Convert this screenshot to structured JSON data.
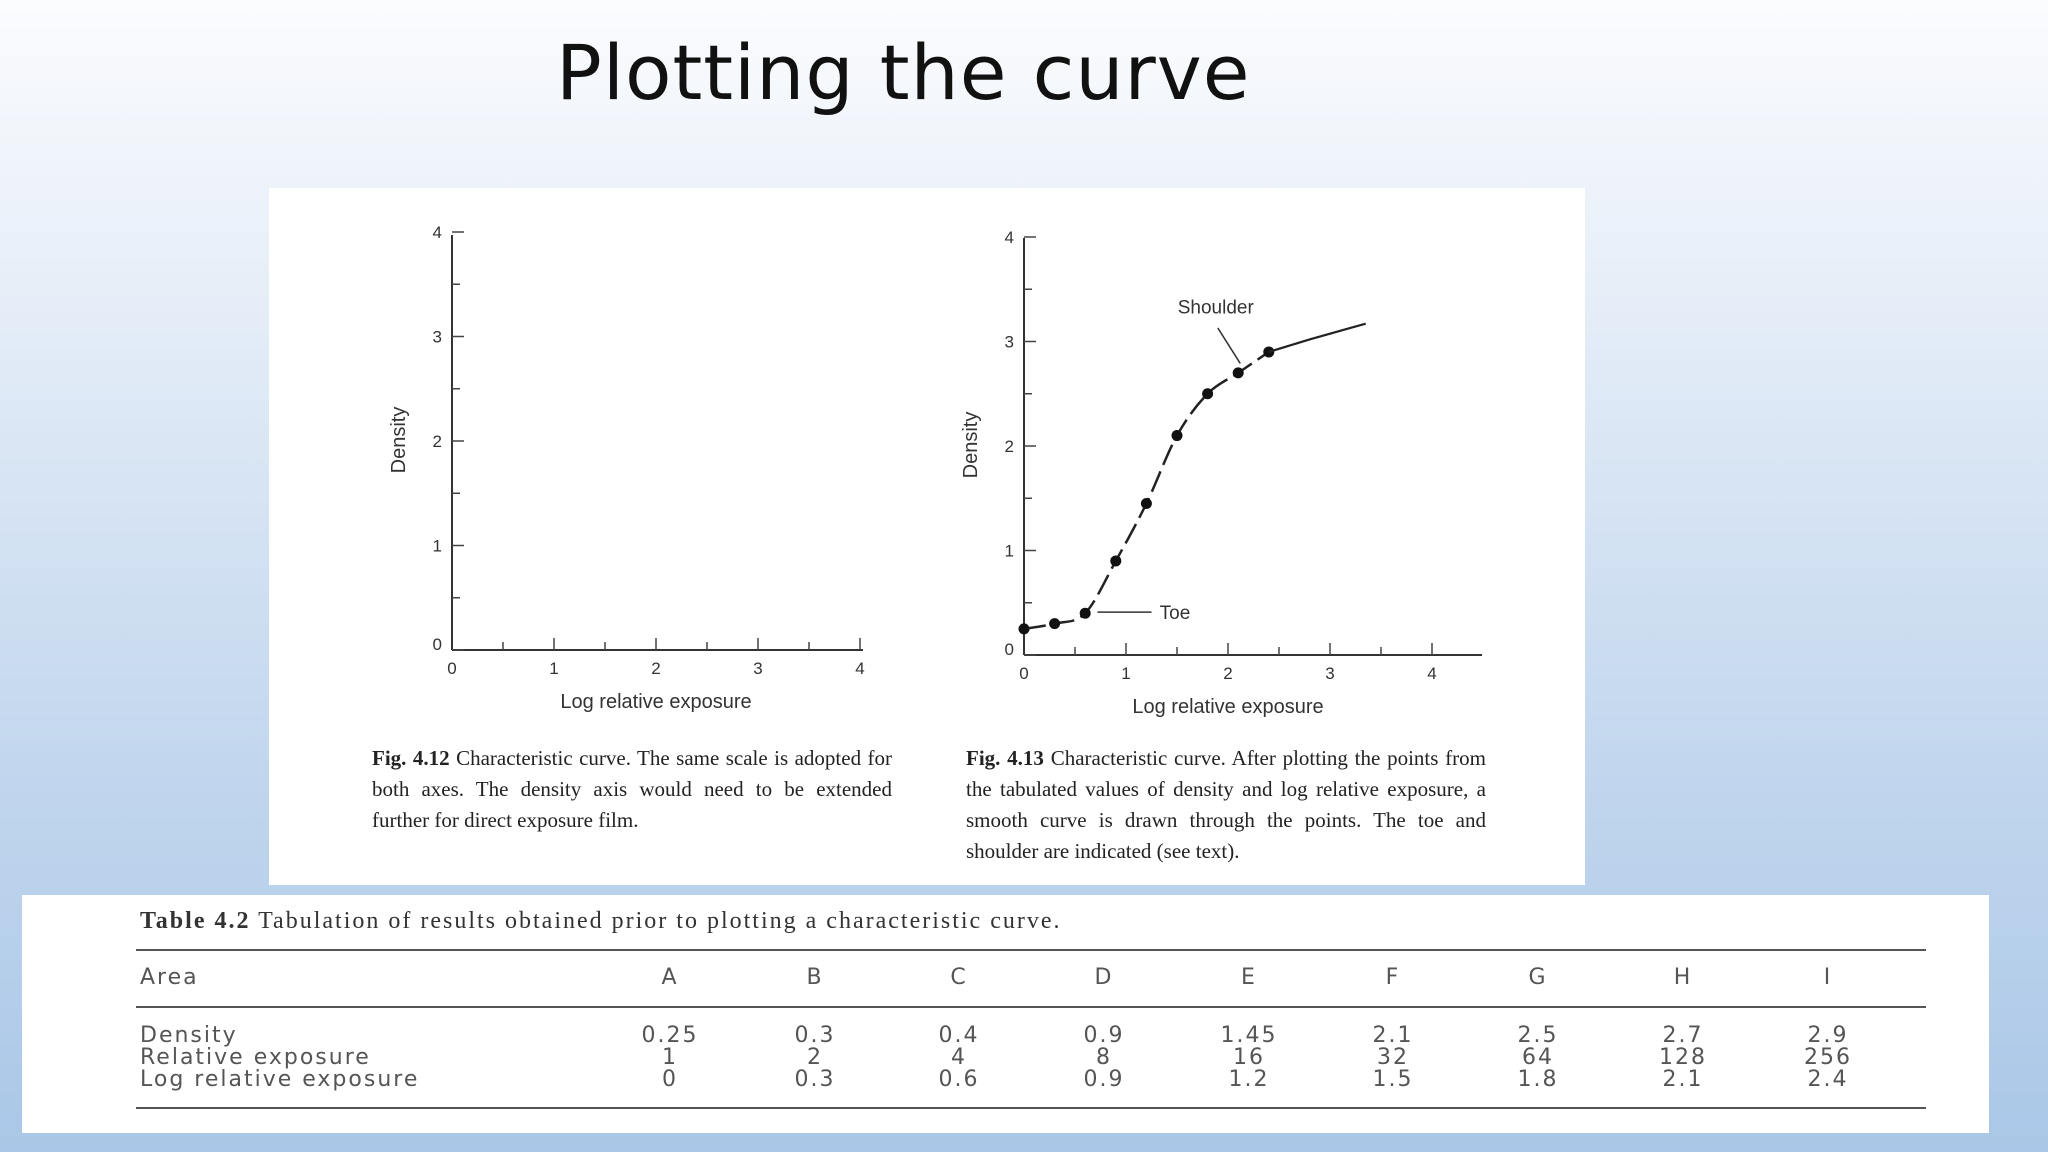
{
  "slide": {
    "title": "Plotting the curve"
  },
  "chart_data": [
    {
      "type": "line",
      "xlabel": "Log relative exposure",
      "ylabel": "Density",
      "xlim": [
        0,
        4
      ],
      "ylim": [
        0,
        4
      ],
      "x_ticks": [
        "0",
        "1",
        "2",
        "3",
        "4"
      ],
      "y_ticks": [
        "0",
        "1",
        "2",
        "3",
        "4"
      ],
      "series": []
    },
    {
      "type": "line",
      "xlabel": "Log relative exposure",
      "ylabel": "Density",
      "xlim": [
        0,
        4
      ],
      "ylim": [
        0,
        4
      ],
      "x_ticks": [
        "0",
        "1",
        "2",
        "3",
        "4"
      ],
      "y_ticks": [
        "0",
        "1",
        "2",
        "3",
        "4"
      ],
      "series": [
        {
          "x": [
            0,
            0.3,
            0.6,
            0.9,
            1.2,
            1.5,
            1.8,
            2.1,
            2.4
          ],
          "y": [
            0.25,
            0.3,
            0.4,
            0.9,
            1.45,
            2.1,
            2.5,
            2.7,
            2.9
          ]
        }
      ],
      "curve_extension": {
        "x": [
          2.4,
          2.8,
          3.2,
          3.35
        ],
        "y": [
          2.9,
          3.02,
          3.13,
          3.17
        ]
      },
      "annotations": [
        "Shoulder",
        "Toe"
      ]
    }
  ],
  "figures": {
    "left_caption": {
      "label": "Fig. 4.12",
      "text": "Characteristic curve. The same scale is adopted for both axes. The density axis would need to be extended further for direct exposure film."
    },
    "right_caption": {
      "label": "Fig. 4.13",
      "text": "Characteristic curve. After plotting the points from the tabulated values of density and log relative exposure, a smooth curve is drawn through the points. The toe and shoulder are indicated (see text)."
    }
  },
  "table": {
    "caption_label": "Table 4.2",
    "caption_text": "Tabulation of results obtained prior to plotting a characteristic curve.",
    "header": [
      "Area",
      "A",
      "B",
      "C",
      "D",
      "E",
      "F",
      "G",
      "H",
      "I"
    ],
    "rows": [
      [
        "Density",
        "0.25",
        "0.3",
        "0.4",
        "0.9",
        "1.45",
        "2.1",
        "2.5",
        "2.7",
        "2.9"
      ],
      [
        "Relative exposure",
        "1",
        "2",
        "4",
        "8",
        "16",
        "32",
        "64",
        "128",
        "256"
      ],
      [
        "Log relative exposure",
        "0",
        "0.3",
        "0.6",
        "0.9",
        "1.2",
        "1.5",
        "1.8",
        "2.1",
        "2.4"
      ]
    ]
  }
}
